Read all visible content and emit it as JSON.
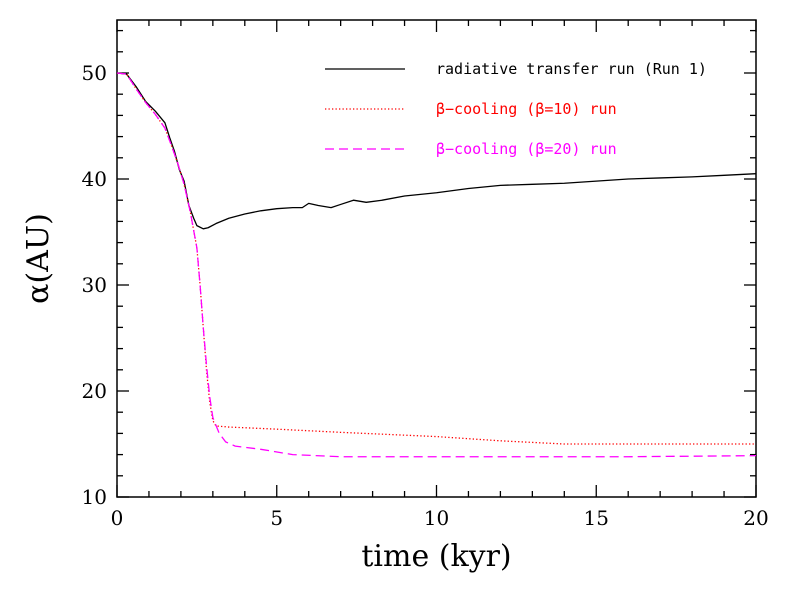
{
  "chart_data": {
    "type": "line",
    "xlabel": "time (kyr)",
    "ylabel": "α(AU)",
    "xlim": [
      0,
      20
    ],
    "ylim": [
      10,
      55
    ],
    "x_ticks": [
      0,
      5,
      10,
      15,
      20
    ],
    "y_ticks": [
      10,
      20,
      30,
      40,
      50
    ],
    "x_minor_step": 1,
    "y_minor_step": 2,
    "grid": false,
    "legend_position": "top-right",
    "series": [
      {
        "name": "radiative transfer run (Run 1)",
        "color": "#000000",
        "dash": "solid",
        "points": [
          [
            0,
            50
          ],
          [
            0.3,
            49.9
          ],
          [
            0.6,
            48.7
          ],
          [
            0.9,
            47.3
          ],
          [
            1.2,
            46.4
          ],
          [
            1.5,
            45.3
          ],
          [
            1.65,
            43.9
          ],
          [
            1.8,
            42.6
          ],
          [
            1.95,
            40.9
          ],
          [
            2.1,
            39.8
          ],
          [
            2.25,
            37.5
          ],
          [
            2.4,
            36.3
          ],
          [
            2.5,
            35.6
          ],
          [
            2.7,
            35.3
          ],
          [
            2.85,
            35.4
          ],
          [
            3.1,
            35.8
          ],
          [
            3.5,
            36.3
          ],
          [
            4.0,
            36.7
          ],
          [
            4.5,
            37.0
          ],
          [
            5.0,
            37.2
          ],
          [
            5.5,
            37.3
          ],
          [
            5.8,
            37.3
          ],
          [
            6.0,
            37.7
          ],
          [
            6.3,
            37.5
          ],
          [
            6.7,
            37.3
          ],
          [
            7.0,
            37.6
          ],
          [
            7.4,
            38.0
          ],
          [
            7.8,
            37.8
          ],
          [
            8.3,
            38.0
          ],
          [
            9.0,
            38.4
          ],
          [
            10.0,
            38.7
          ],
          [
            11.0,
            39.1
          ],
          [
            12.0,
            39.4
          ],
          [
            13.0,
            39.5
          ],
          [
            14.0,
            39.6
          ],
          [
            15.0,
            39.8
          ],
          [
            16.0,
            40.0
          ],
          [
            17.0,
            40.1
          ],
          [
            18.0,
            40.2
          ],
          [
            19.0,
            40.35
          ],
          [
            20.0,
            40.5
          ]
        ]
      },
      {
        "name": "β−cooling (β=10) run",
        "color": "#ff0000",
        "dash": "dotted",
        "points": [
          [
            0,
            50
          ],
          [
            0.3,
            49.9
          ],
          [
            0.6,
            48.5
          ],
          [
            0.9,
            47.2
          ],
          [
            1.2,
            46.1
          ],
          [
            1.5,
            44.8
          ],
          [
            1.7,
            43.2
          ],
          [
            1.9,
            41.5
          ],
          [
            2.1,
            39.5
          ],
          [
            2.3,
            36.8
          ],
          [
            2.5,
            33.5
          ],
          [
            2.6,
            30.0
          ],
          [
            2.7,
            26.0
          ],
          [
            2.8,
            22.0
          ],
          [
            2.9,
            19.0
          ],
          [
            3.0,
            17.2
          ],
          [
            3.1,
            16.7
          ],
          [
            3.5,
            16.6
          ],
          [
            5.0,
            16.4
          ],
          [
            7.0,
            16.1
          ],
          [
            10.0,
            15.7
          ],
          [
            12.0,
            15.3
          ],
          [
            14.0,
            15.0
          ],
          [
            16.0,
            15.0
          ],
          [
            18.0,
            15.0
          ],
          [
            20.0,
            15.0
          ]
        ]
      },
      {
        "name": "β−cooling (β=20) run",
        "color": "#ff00ff",
        "dash": "dashed",
        "points": [
          [
            0,
            50
          ],
          [
            0.3,
            49.9
          ],
          [
            0.6,
            48.5
          ],
          [
            0.9,
            47.2
          ],
          [
            1.2,
            46.1
          ],
          [
            1.5,
            44.8
          ],
          [
            1.7,
            43.2
          ],
          [
            1.9,
            41.5
          ],
          [
            2.1,
            39.5
          ],
          [
            2.3,
            36.8
          ],
          [
            2.5,
            33.5
          ],
          [
            2.6,
            30.0
          ],
          [
            2.7,
            26.0
          ],
          [
            2.8,
            22.5
          ],
          [
            2.9,
            19.5
          ],
          [
            3.0,
            17.5
          ],
          [
            3.2,
            16.0
          ],
          [
            3.4,
            15.2
          ],
          [
            3.7,
            14.8
          ],
          [
            4.5,
            14.5
          ],
          [
            5.5,
            14.0
          ],
          [
            7.0,
            13.8
          ],
          [
            9.0,
            13.8
          ],
          [
            12.0,
            13.8
          ],
          [
            16.0,
            13.8
          ],
          [
            20.0,
            13.9
          ]
        ]
      }
    ]
  }
}
